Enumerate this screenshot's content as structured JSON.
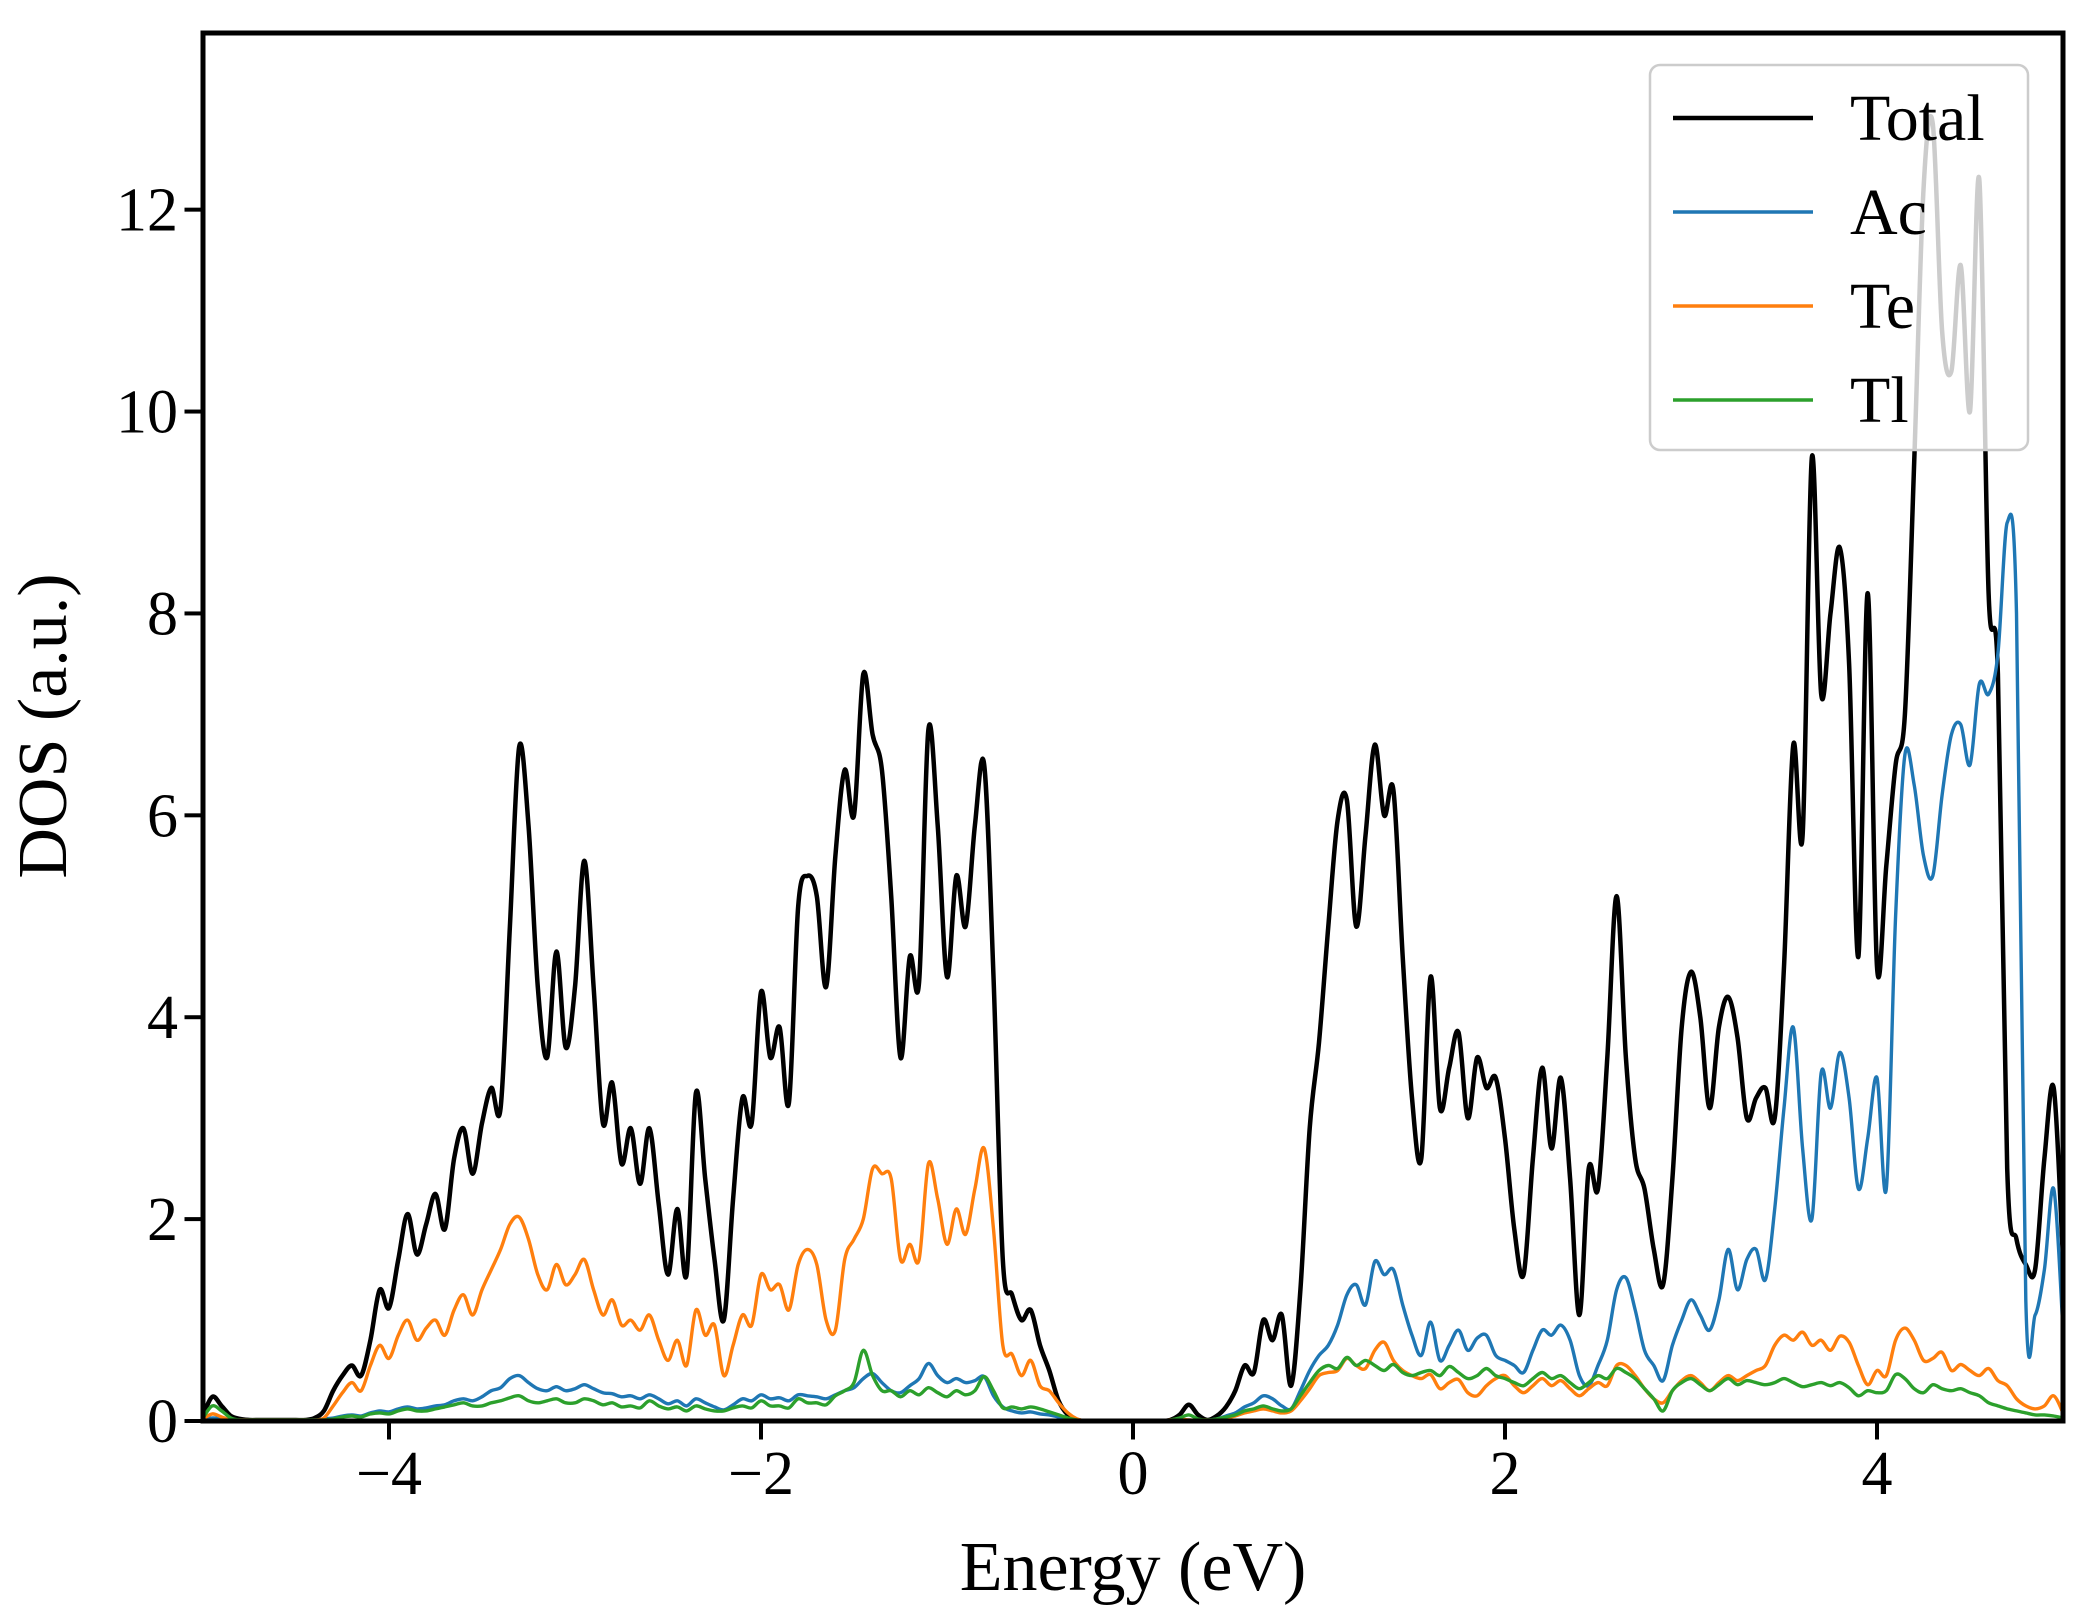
{
  "chart_data": {
    "type": "line",
    "title": "",
    "xlabel": "Energy (eV)",
    "ylabel": "DOS (a.u.)",
    "xlim": [
      -5,
      5
    ],
    "ylim": [
      0,
      13.75
    ],
    "grid": false,
    "background": "#ffffff",
    "axis_color": "#000000",
    "xticks": [
      {
        "value": -4,
        "label": "−4"
      },
      {
        "value": -2,
        "label": "−2"
      },
      {
        "value": 0,
        "label": "0"
      },
      {
        "value": 2,
        "label": "2"
      },
      {
        "value": 4,
        "label": "4"
      }
    ],
    "yticks": [
      {
        "value": 0,
        "label": "0"
      },
      {
        "value": 2,
        "label": "2"
      },
      {
        "value": 4,
        "label": "4"
      },
      {
        "value": 6,
        "label": "6"
      },
      {
        "value": 8,
        "label": "8"
      },
      {
        "value": 10,
        "label": "10"
      },
      {
        "value": 12,
        "label": "12"
      }
    ],
    "legend": {
      "position": "upper right",
      "frame_color": "#cccccc",
      "background": "#ffffff",
      "opacity": 0.8,
      "entries": [
        "Total",
        "Ac",
        "Te",
        "Tl"
      ]
    },
    "x": [
      -5,
      -4.95,
      -4.9,
      -4.85,
      -4.8,
      -4.75,
      -4.7,
      -4.65,
      -4.6,
      -4.55,
      -4.5,
      -4.45,
      -4.4,
      -4.35,
      -4.3,
      -4.25,
      -4.2,
      -4.15,
      -4.1,
      -4.05,
      -4,
      -3.95,
      -3.9,
      -3.85,
      -3.8,
      -3.75,
      -3.7,
      -3.65,
      -3.6,
      -3.55,
      -3.5,
      -3.45,
      -3.4,
      -3.35,
      -3.3,
      -3.25,
      -3.2,
      -3.15,
      -3.1,
      -3.05,
      -3,
      -2.95,
      -2.9,
      -2.85,
      -2.8,
      -2.75,
      -2.7,
      -2.65,
      -2.6,
      -2.55,
      -2.5,
      -2.45,
      -2.4,
      -2.35,
      -2.3,
      -2.25,
      -2.2,
      -2.15,
      -2.1,
      -2.05,
      -2,
      -1.95,
      -1.9,
      -1.85,
      -1.8,
      -1.75,
      -1.7,
      -1.65,
      -1.6,
      -1.55,
      -1.5,
      -1.45,
      -1.4,
      -1.35,
      -1.3,
      -1.25,
      -1.2,
      -1.15,
      -1.1,
      -1.05,
      -1,
      -0.95,
      -0.9,
      -0.85,
      -0.8,
      -0.75,
      -0.7,
      -0.65,
      -0.6,
      -0.55,
      -0.5,
      -0.45,
      -0.4,
      -0.35,
      -0.3,
      -0.25,
      -0.2,
      -0.15,
      -0.1,
      -0.05,
      0,
      0.05,
      0.1,
      0.15,
      0.2,
      0.25,
      0.3,
      0.35,
      0.4,
      0.45,
      0.5,
      0.55,
      0.6,
      0.65,
      0.7,
      0.75,
      0.8,
      0.85,
      0.9,
      0.95,
      1,
      1.05,
      1.1,
      1.15,
      1.2,
      1.25,
      1.3,
      1.35,
      1.4,
      1.45,
      1.5,
      1.55,
      1.6,
      1.65,
      1.7,
      1.75,
      1.8,
      1.85,
      1.9,
      1.95,
      2,
      2.05,
      2.1,
      2.15,
      2.2,
      2.25,
      2.3,
      2.35,
      2.4,
      2.45,
      2.5,
      2.55,
      2.6,
      2.65,
      2.7,
      2.75,
      2.8,
      2.85,
      2.9,
      2.95,
      3,
      3.05,
      3.1,
      3.15,
      3.2,
      3.25,
      3.3,
      3.35,
      3.4,
      3.45,
      3.5,
      3.55,
      3.6,
      3.65,
      3.7,
      3.75,
      3.8,
      3.85,
      3.9,
      3.95,
      4,
      4.05,
      4.1,
      4.15,
      4.2,
      4.25,
      4.3,
      4.35,
      4.4,
      4.45,
      4.5,
      4.55,
      4.6,
      4.65,
      4.7,
      4.75,
      4.8,
      4.85,
      4.9,
      4.95,
      5
    ],
    "series": [
      {
        "name": "Total",
        "color": "#000000",
        "linewidth": 4.5,
        "values": [
          0.05,
          0.24,
          0.15,
          0.05,
          0.02,
          0.01,
          0.01,
          0.01,
          0.01,
          0.01,
          0.01,
          0.01,
          0.03,
          0.1,
          0.3,
          0.45,
          0.55,
          0.45,
          0.8,
          1.3,
          1.12,
          1.6,
          2.05,
          1.65,
          1.95,
          2.25,
          1.9,
          2.6,
          2.9,
          2.45,
          2.95,
          3.3,
          3.1,
          4.9,
          6.68,
          5.9,
          4.3,
          3.6,
          4.65,
          3.7,
          4.3,
          5.55,
          4.3,
          2.95,
          3.35,
          2.55,
          2.9,
          2.35,
          2.9,
          2.15,
          1.45,
          2.1,
          1.45,
          3.25,
          2.4,
          1.6,
          1.0,
          2.2,
          3.2,
          2.95,
          4.25,
          3.6,
          3.9,
          3.15,
          5.1,
          5.4,
          5.2,
          4.3,
          5.6,
          6.45,
          6.0,
          7.4,
          6.8,
          6.45,
          5.2,
          3.6,
          4.6,
          4.35,
          6.85,
          5.9,
          4.4,
          5.4,
          4.9,
          5.9,
          6.5,
          4.4,
          1.6,
          1.25,
          1.0,
          1.1,
          0.75,
          0.5,
          0.2,
          0.06,
          0.01,
          0,
          0,
          0,
          0,
          0,
          0,
          0,
          0,
          0,
          0.01,
          0.06,
          0.16,
          0.06,
          0.01,
          0.05,
          0.14,
          0.3,
          0.55,
          0.48,
          1.0,
          0.8,
          1.05,
          0.35,
          1.3,
          2.9,
          3.75,
          4.9,
          5.95,
          6.15,
          4.9,
          5.8,
          6.7,
          6.0,
          6.25,
          4.6,
          3.2,
          2.6,
          4.4,
          3.1,
          3.5,
          3.85,
          3.0,
          3.6,
          3.3,
          3.4,
          2.8,
          1.9,
          1.45,
          2.6,
          3.5,
          2.7,
          3.4,
          2.4,
          1.05,
          2.5,
          2.3,
          3.6,
          5.2,
          3.6,
          2.6,
          2.3,
          1.7,
          1.35,
          2.4,
          3.9,
          4.45,
          4.0,
          3.1,
          3.9,
          4.2,
          3.8,
          3.0,
          3.2,
          3.3,
          3.0,
          4.5,
          6.7,
          5.8,
          9.55,
          7.2,
          8.0,
          8.65,
          7.5,
          4.6,
          8.2,
          4.5,
          5.5,
          6.5,
          7.0,
          9.5,
          12.2,
          12.85,
          10.8,
          10.4,
          11.45,
          10.0,
          12.3,
          8.2,
          7.4,
          2.5,
          1.8,
          1.55,
          1.5,
          2.6,
          3.3,
          1.6
        ]
      },
      {
        "name": "Ac",
        "color": "#1f77b4",
        "linewidth": 3.4,
        "values": [
          0.01,
          0.03,
          0.02,
          0.01,
          0.01,
          0.01,
          0.01,
          0.01,
          0.01,
          0.01,
          0.01,
          0.01,
          0.01,
          0.02,
          0.03,
          0.05,
          0.06,
          0.05,
          0.08,
          0.1,
          0.09,
          0.12,
          0.14,
          0.12,
          0.13,
          0.15,
          0.16,
          0.2,
          0.22,
          0.2,
          0.24,
          0.3,
          0.33,
          0.42,
          0.45,
          0.38,
          0.32,
          0.3,
          0.34,
          0.3,
          0.32,
          0.36,
          0.32,
          0.28,
          0.27,
          0.24,
          0.25,
          0.22,
          0.26,
          0.22,
          0.17,
          0.2,
          0.15,
          0.22,
          0.18,
          0.14,
          0.11,
          0.16,
          0.22,
          0.2,
          0.26,
          0.22,
          0.23,
          0.2,
          0.26,
          0.25,
          0.24,
          0.22,
          0.26,
          0.3,
          0.33,
          0.42,
          0.47,
          0.38,
          0.3,
          0.28,
          0.35,
          0.42,
          0.57,
          0.45,
          0.38,
          0.42,
          0.38,
          0.4,
          0.44,
          0.25,
          0.14,
          0.1,
          0.08,
          0.09,
          0.07,
          0.06,
          0.04,
          0.02,
          0.01,
          0,
          0,
          0,
          0,
          0,
          0,
          0,
          0,
          0,
          0,
          0,
          0.01,
          0,
          0.01,
          0.02,
          0.05,
          0.08,
          0.14,
          0.18,
          0.25,
          0.22,
          0.15,
          0.12,
          0.3,
          0.5,
          0.65,
          0.75,
          0.95,
          1.25,
          1.35,
          1.15,
          1.58,
          1.45,
          1.5,
          1.15,
          0.85,
          0.65,
          0.98,
          0.6,
          0.75,
          0.9,
          0.7,
          0.82,
          0.85,
          0.65,
          0.6,
          0.55,
          0.48,
          0.7,
          0.9,
          0.85,
          0.95,
          0.8,
          0.45,
          0.35,
          0.55,
          0.8,
          1.3,
          1.42,
          1.1,
          0.7,
          0.55,
          0.4,
          0.75,
          1.0,
          1.2,
          1.05,
          0.9,
          1.2,
          1.7,
          1.3,
          1.6,
          1.7,
          1.4,
          2.1,
          3.1,
          3.9,
          2.7,
          2.0,
          3.45,
          3.1,
          3.65,
          3.2,
          2.3,
          2.8,
          3.4,
          2.3,
          5.0,
          6.6,
          6.3,
          5.6,
          5.4,
          6.2,
          6.8,
          6.9,
          6.5,
          7.3,
          7.2,
          7.6,
          8.9,
          8.0,
          1.2,
          1.05,
          1.5,
          2.3,
          0.9
        ]
      },
      {
        "name": "Te",
        "color": "#ff7f0e",
        "linewidth": 3.4,
        "values": [
          0.02,
          0.07,
          0.04,
          0.01,
          0.01,
          0.01,
          0.01,
          0.01,
          0.01,
          0.01,
          0.01,
          0.01,
          0.01,
          0.03,
          0.15,
          0.28,
          0.38,
          0.3,
          0.55,
          0.75,
          0.62,
          0.85,
          1.0,
          0.8,
          0.92,
          1.0,
          0.85,
          1.1,
          1.25,
          1.05,
          1.3,
          1.5,
          1.7,
          1.95,
          2.02,
          1.8,
          1.45,
          1.3,
          1.55,
          1.35,
          1.45,
          1.6,
          1.3,
          1.05,
          1.2,
          0.95,
          1.0,
          0.9,
          1.05,
          0.8,
          0.6,
          0.8,
          0.55,
          1.1,
          0.85,
          0.95,
          0.45,
          0.75,
          1.05,
          0.95,
          1.45,
          1.3,
          1.35,
          1.1,
          1.55,
          1.7,
          1.55,
          1.0,
          0.9,
          1.6,
          1.8,
          2.0,
          2.5,
          2.45,
          2.4,
          1.6,
          1.75,
          1.6,
          2.55,
          2.2,
          1.75,
          2.1,
          1.85,
          2.3,
          2.7,
          1.9,
          0.75,
          0.66,
          0.45,
          0.6,
          0.35,
          0.3,
          0.18,
          0.08,
          0.02,
          0,
          0,
          0,
          0,
          0,
          0,
          0,
          0,
          0,
          0.01,
          0.02,
          0.01,
          0.01,
          0.01,
          0.01,
          0.03,
          0.05,
          0.08,
          0.1,
          0.12,
          0.1,
          0.08,
          0.1,
          0.2,
          0.32,
          0.45,
          0.48,
          0.5,
          0.62,
          0.55,
          0.52,
          0.7,
          0.78,
          0.6,
          0.5,
          0.45,
          0.42,
          0.46,
          0.32,
          0.38,
          0.41,
          0.28,
          0.25,
          0.35,
          0.42,
          0.45,
          0.35,
          0.28,
          0.35,
          0.42,
          0.35,
          0.4,
          0.32,
          0.25,
          0.32,
          0.38,
          0.35,
          0.55,
          0.55,
          0.45,
          0.32,
          0.22,
          0.18,
          0.3,
          0.4,
          0.45,
          0.38,
          0.3,
          0.38,
          0.45,
          0.4,
          0.45,
          0.5,
          0.55,
          0.75,
          0.85,
          0.8,
          0.88,
          0.75,
          0.8,
          0.7,
          0.84,
          0.78,
          0.55,
          0.36,
          0.5,
          0.45,
          0.8,
          0.92,
          0.8,
          0.6,
          0.62,
          0.68,
          0.5,
          0.56,
          0.5,
          0.45,
          0.52,
          0.4,
          0.35,
          0.22,
          0.15,
          0.12,
          0.15,
          0.25,
          0.08
        ]
      },
      {
        "name": "Tl",
        "color": "#2ca02c",
        "linewidth": 3.4,
        "values": [
          0.03,
          0.15,
          0.1,
          0.03,
          0.01,
          0.01,
          0.01,
          0.01,
          0.01,
          0.01,
          0.01,
          0.01,
          0.01,
          0.01,
          0.02,
          0.04,
          0.05,
          0.04,
          0.07,
          0.08,
          0.07,
          0.1,
          0.12,
          0.1,
          0.1,
          0.12,
          0.14,
          0.16,
          0.18,
          0.15,
          0.15,
          0.18,
          0.2,
          0.23,
          0.25,
          0.2,
          0.18,
          0.2,
          0.22,
          0.18,
          0.18,
          0.22,
          0.2,
          0.16,
          0.18,
          0.14,
          0.15,
          0.13,
          0.2,
          0.15,
          0.12,
          0.14,
          0.1,
          0.15,
          0.12,
          0.1,
          0.1,
          0.13,
          0.15,
          0.13,
          0.2,
          0.15,
          0.15,
          0.13,
          0.22,
          0.18,
          0.18,
          0.16,
          0.25,
          0.3,
          0.38,
          0.7,
          0.45,
          0.3,
          0.3,
          0.24,
          0.3,
          0.26,
          0.33,
          0.28,
          0.24,
          0.3,
          0.26,
          0.3,
          0.44,
          0.3,
          0.13,
          0.14,
          0.12,
          0.14,
          0.12,
          0.09,
          0.06,
          0.03,
          0.01,
          0,
          0,
          0,
          0,
          0,
          0,
          0,
          0,
          0,
          0.01,
          0.03,
          0.06,
          0.02,
          0.01,
          0.02,
          0.04,
          0.06,
          0.1,
          0.12,
          0.15,
          0.12,
          0.1,
          0.12,
          0.25,
          0.38,
          0.5,
          0.55,
          0.52,
          0.63,
          0.55,
          0.6,
          0.55,
          0.5,
          0.56,
          0.48,
          0.45,
          0.48,
          0.5,
          0.45,
          0.54,
          0.48,
          0.42,
          0.45,
          0.52,
          0.45,
          0.42,
          0.38,
          0.35,
          0.42,
          0.48,
          0.42,
          0.45,
          0.38,
          0.32,
          0.38,
          0.45,
          0.42,
          0.52,
          0.48,
          0.42,
          0.32,
          0.22,
          0.1,
          0.3,
          0.38,
          0.42,
          0.36,
          0.3,
          0.36,
          0.42,
          0.36,
          0.4,
          0.38,
          0.36,
          0.38,
          0.42,
          0.38,
          0.34,
          0.36,
          0.38,
          0.35,
          0.38,
          0.33,
          0.25,
          0.3,
          0.28,
          0.3,
          0.46,
          0.42,
          0.32,
          0.28,
          0.36,
          0.32,
          0.3,
          0.32,
          0.28,
          0.25,
          0.18,
          0.15,
          0.12,
          0.1,
          0.08,
          0.06,
          0.06,
          0.05,
          0.03
        ]
      }
    ]
  }
}
